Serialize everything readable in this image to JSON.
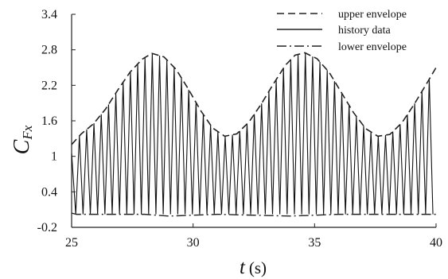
{
  "chart_data": {
    "type": "line",
    "xlabel_var": "t",
    "xlabel_unit": "(s)",
    "ylabel_main": "C",
    "ylabel_sub": "Fx",
    "xlim": [
      25,
      40
    ],
    "ylim": [
      -0.2,
      3.4
    ],
    "xticks": [
      "25",
      "30",
      "35",
      "40"
    ],
    "yticks": [
      "-0.2",
      "0.4",
      "1",
      "1.6",
      "2.2",
      "2.8",
      "3.4"
    ],
    "xtick_values": [
      25,
      30,
      35,
      40
    ],
    "ytick_values": [
      -0.2,
      0.4,
      1,
      1.6,
      2.2,
      2.8,
      3.4
    ],
    "legend_position": "top-right",
    "series": [
      {
        "name": "upper envelope",
        "style": "dashed",
        "x": [
          25.0,
          25.4,
          25.9,
          26.4,
          26.9,
          27.4,
          27.9,
          28.3,
          28.8,
          29.3,
          29.8,
          30.3,
          30.8,
          31.3,
          31.8,
          32.3,
          32.8,
          33.3,
          33.8,
          34.2,
          34.6,
          35.1,
          35.6,
          36.1,
          36.6,
          37.1,
          37.6,
          38.1,
          38.6,
          39.1,
          39.6,
          40.0
        ],
        "y": [
          1.2,
          1.38,
          1.55,
          1.8,
          2.12,
          2.42,
          2.64,
          2.74,
          2.68,
          2.47,
          2.14,
          1.78,
          1.48,
          1.34,
          1.38,
          1.58,
          1.88,
          2.22,
          2.54,
          2.71,
          2.75,
          2.65,
          2.42,
          2.08,
          1.74,
          1.47,
          1.34,
          1.37,
          1.57,
          1.88,
          2.22,
          2.5
        ]
      },
      {
        "name": "history data",
        "style": "solid",
        "period": 0.3,
        "start_offset": 0.17,
        "start": 1.05,
        "trough": 0.02
      },
      {
        "name": "lower envelope",
        "style": "dashdot",
        "x": [
          25.0,
          25.2,
          28.0,
          29.0,
          31.0,
          34.0,
          36.0,
          40.0
        ],
        "y": [
          0.04,
          0.02,
          0.02,
          -0.01,
          0.02,
          -0.01,
          0.02,
          0.02
        ]
      }
    ]
  }
}
